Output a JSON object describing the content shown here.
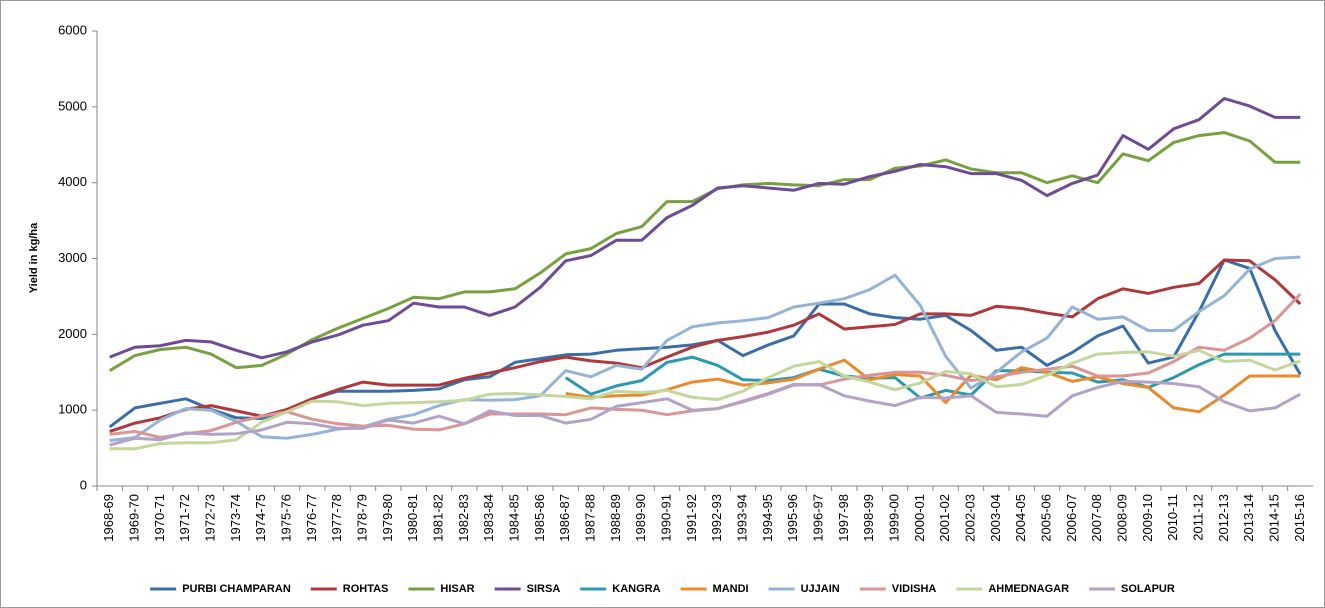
{
  "chart_data": {
    "type": "line",
    "y_label": "Yield in kg/ha",
    "categories": [
      "1968-69",
      "1969-70",
      "1970-71",
      "1971-72",
      "1972-73",
      "1973-74",
      "1974-75",
      "1975-76",
      "1976-77",
      "1977-78",
      "1978-79",
      "1979-80",
      "1980-81",
      "1981-82",
      "1982-83",
      "1983-84",
      "1984-85",
      "1985-86",
      "1986-87",
      "1987-88",
      "1988-89",
      "1989-90",
      "1990-91",
      "1991-92",
      "1992-93",
      "1993-94",
      "1994-95",
      "1995-96",
      "1996-97",
      "1997-98",
      "1998-99",
      "1999-00",
      "2000-01",
      "2001-02",
      "2002-03",
      "2003-04",
      "2004-05",
      "2005-06",
      "2006-07",
      "2007-08",
      "2008-09",
      "2009-10",
      "2010-11",
      "2011-12",
      "2012-13",
      "2013-14",
      "2014-15",
      "2015-16"
    ],
    "ylim": [
      0,
      6000
    ],
    "yticks": [
      0,
      1000,
      2000,
      3000,
      4000,
      5000,
      6000
    ],
    "grid": false,
    "legend": "bottom",
    "series": [
      {
        "name": "PURBI CHAMPARAN",
        "color": "#3a6ea5",
        "values": [
          780,
          1030,
          1090,
          1150,
          1010,
          900,
          890,
          1000,
          1150,
          1250,
          1250,
          1250,
          1260,
          1280,
          1400,
          1440,
          1630,
          1680,
          1730,
          1740,
          1790,
          1810,
          1830,
          1860,
          1920,
          1720,
          1860,
          1980,
          2400,
          2400,
          2270,
          2220,
          2200,
          2250,
          2050,
          1790,
          1830,
          1590,
          1760,
          1980,
          2110,
          1620,
          1700,
          2300,
          2980,
          2870,
          2050,
          1470
        ]
      },
      {
        "name": "ROHTAS",
        "color": "#b0383a",
        "values": [
          720,
          830,
          900,
          1010,
          1060,
          990,
          920,
          1010,
          1150,
          1270,
          1370,
          1330,
          1330,
          1330,
          1420,
          1490,
          1560,
          1640,
          1700,
          1650,
          1620,
          1560,
          1700,
          1830,
          1920,
          1970,
          2030,
          2120,
          2270,
          2070,
          2100,
          2130,
          2270,
          2270,
          2250,
          2370,
          2340,
          2280,
          2230,
          2470,
          2600,
          2540,
          2620,
          2670,
          2980,
          2970,
          2720,
          2400
        ]
      },
      {
        "name": "HISAR",
        "color": "#77a140",
        "values": [
          1520,
          1720,
          1800,
          1830,
          1740,
          1560,
          1590,
          1740,
          1930,
          2080,
          2210,
          2340,
          2490,
          2470,
          2560,
          2560,
          2600,
          2810,
          3060,
          3130,
          3330,
          3420,
          3750,
          3750,
          3920,
          3970,
          3990,
          3970,
          3960,
          4040,
          4040,
          4190,
          4220,
          4300,
          4180,
          4130,
          4130,
          4000,
          4090,
          4000,
          4380,
          4290,
          4530,
          4620,
          4660,
          4550,
          4270,
          4270
        ]
      },
      {
        "name": "SIRSA",
        "color": "#6e4b94",
        "values": [
          1700,
          1830,
          1850,
          1920,
          1900,
          1790,
          1690,
          1770,
          1900,
          1990,
          2120,
          2180,
          2410,
          2360,
          2360,
          2250,
          2360,
          2620,
          2970,
          3040,
          3240,
          3240,
          3540,
          3700,
          3930,
          3960,
          3930,
          3900,
          3990,
          3980,
          4080,
          4150,
          4240,
          4210,
          4120,
          4120,
          4030,
          3830,
          3990,
          4100,
          4620,
          4440,
          4710,
          4830,
          5110,
          5010,
          4860,
          4860
        ]
      },
      {
        "name": "KANGRA",
        "color": "#2b9aae",
        "values": [
          null,
          null,
          null,
          null,
          null,
          null,
          null,
          null,
          null,
          null,
          null,
          null,
          null,
          null,
          null,
          null,
          null,
          null,
          1430,
          1210,
          1320,
          1390,
          1630,
          1700,
          1590,
          1400,
          1390,
          1430,
          1540,
          1450,
          1420,
          1430,
          1160,
          1260,
          1200,
          1520,
          1520,
          1500,
          1490,
          1370,
          1400,
          1300,
          1430,
          1600,
          1740,
          1740,
          1740,
          1740
        ]
      },
      {
        "name": "MANDI",
        "color": "#e88a2e",
        "values": [
          null,
          null,
          null,
          null,
          null,
          null,
          null,
          null,
          null,
          null,
          null,
          null,
          null,
          null,
          null,
          null,
          null,
          null,
          1220,
          1170,
          1190,
          1200,
          1270,
          1370,
          1410,
          1330,
          1360,
          1410,
          1540,
          1660,
          1400,
          1470,
          1450,
          1100,
          1460,
          1400,
          1560,
          1500,
          1380,
          1440,
          1350,
          1300,
          1030,
          980,
          1200,
          1450,
          1450,
          1450
        ]
      },
      {
        "name": "UJJAIN",
        "color": "#95b3d7",
        "values": [
          600,
          640,
          870,
          1020,
          1000,
          850,
          650,
          630,
          680,
          750,
          780,
          880,
          940,
          1060,
          1140,
          1130,
          1140,
          1190,
          1520,
          1440,
          1590,
          1540,
          1920,
          2100,
          2150,
          2180,
          2220,
          2360,
          2410,
          2470,
          2590,
          2780,
          2380,
          1710,
          1290,
          1500,
          1770,
          1950,
          2360,
          2200,
          2230,
          2050,
          2050,
          2300,
          2510,
          2860,
          3000,
          3020
        ]
      },
      {
        "name": "VIDISHA",
        "color": "#d99694",
        "values": [
          680,
          720,
          640,
          690,
          730,
          840,
          920,
          980,
          880,
          820,
          790,
          800,
          750,
          740,
          820,
          950,
          950,
          950,
          940,
          1030,
          1010,
          1000,
          940,
          990,
          1020,
          1120,
          1220,
          1340,
          1330,
          1410,
          1460,
          1500,
          1500,
          1460,
          1390,
          1440,
          1500,
          1540,
          1580,
          1450,
          1450,
          1490,
          1640,
          1830,
          1790,
          1950,
          2180,
          2530
        ]
      },
      {
        "name": "AHMEDNAGAR",
        "color": "#c3d69b",
        "values": [
          490,
          490,
          560,
          570,
          570,
          610,
          840,
          980,
          1120,
          1110,
          1060,
          1090,
          1100,
          1110,
          1130,
          1210,
          1220,
          1200,
          1180,
          1150,
          1250,
          1230,
          1260,
          1170,
          1140,
          1250,
          1430,
          1580,
          1640,
          1450,
          1370,
          1270,
          1360,
          1510,
          1480,
          1310,
          1340,
          1460,
          1620,
          1740,
          1760,
          1770,
          1710,
          1790,
          1640,
          1660,
          1530,
          1650
        ]
      },
      {
        "name": "SOLAPUR",
        "color": "#b3a2c7",
        "values": [
          540,
          630,
          610,
          700,
          680,
          690,
          740,
          840,
          820,
          760,
          760,
          870,
          830,
          920,
          820,
          990,
          930,
          930,
          830,
          880,
          1050,
          1100,
          1150,
          1000,
          1020,
          1110,
          1210,
          1330,
          1340,
          1190,
          1120,
          1060,
          1170,
          1160,
          1190,
          970,
          950,
          920,
          1190,
          1300,
          1380,
          1370,
          1350,
          1310,
          1110,
          990,
          1030,
          1210
        ]
      }
    ]
  }
}
